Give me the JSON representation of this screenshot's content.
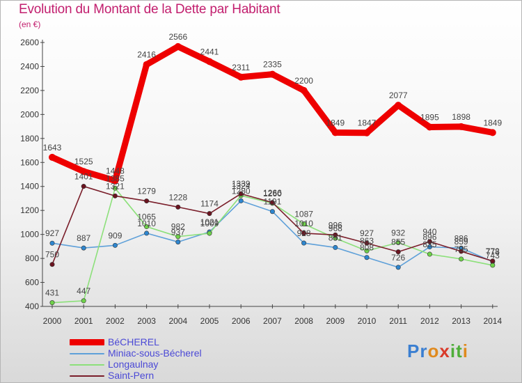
{
  "header": {
    "title": "Evolution du Montant de la Dette par Habitant",
    "subtitle": "(en €)"
  },
  "logo": {
    "letters": [
      "P",
      "r",
      "o",
      "x",
      "i",
      "t",
      "i"
    ],
    "colors": [
      "#3b7fd1",
      "#3b7fd1",
      "#e08a1e",
      "#d93a2a",
      "#4fae3a",
      "#4fae3a",
      "#e08a1e"
    ]
  },
  "chart_data": {
    "type": "line",
    "title": "Evolution du Montant de la Dette par Habitant",
    "subtitle": "(en €)",
    "xlabel": "",
    "ylabel": "",
    "categories": [
      "2000",
      "2001",
      "2002",
      "2003",
      "2004",
      "2005",
      "2006",
      "2007",
      "2008",
      "2009",
      "2010",
      "2011",
      "2012",
      "2013",
      "2014"
    ],
    "ylim": [
      400,
      2600
    ],
    "yticks": [
      400,
      600,
      800,
      1000,
      1200,
      1400,
      1600,
      1800,
      2000,
      2200,
      2400,
      2600
    ],
    "grid": false,
    "legend_position": "bottom-left",
    "series": [
      {
        "name": "BéCHEREL",
        "color": "#ee0000",
        "marker_color": "#ee0000",
        "width": "thick",
        "values": [
          1643,
          1525,
          1448,
          2416,
          2566,
          2441,
          2311,
          2335,
          2200,
          1849,
          1847,
          2077,
          1895,
          1898,
          1849
        ],
        "labels": [
          "1643",
          "1525",
          "1448",
          "2416",
          "2566",
          "2441",
          "2311",
          "2335",
          "2200",
          "1849",
          "1847",
          "2077",
          "1895",
          "1898",
          "1849"
        ]
      },
      {
        "name": "Miniac-sous-Bécherel",
        "color": "#5ea0d9",
        "marker_color": "#2e86cf",
        "width": "thin",
        "values": [
          927,
          887,
          909,
          1010,
          937,
          1021,
          1280,
          1191,
          928,
          891,
          808,
          726,
          896,
          886,
          773
        ],
        "labels": [
          "927",
          "887",
          "909",
          "1010",
          "937",
          "1021",
          "1280",
          "1191",
          "928",
          "891",
          "808",
          "726",
          "896",
          "886",
          "773"
        ]
      },
      {
        "name": "Longaulnay",
        "color": "#8ce07a",
        "marker_color": "#6fd24a",
        "width": "thin",
        "values": [
          431,
          447,
          1385,
          1065,
          982,
          1009,
          1324,
          1260,
          1087,
          968,
          863,
          932,
          835,
          795,
          743
        ],
        "labels": [
          "431",
          "447",
          "1385",
          "1065",
          "982",
          "1009",
          "1324",
          "1260",
          "1087",
          "968",
          "863",
          "932",
          "835",
          "795",
          "743"
        ]
      },
      {
        "name": "Saint-Pern",
        "color": "#7a1e2a",
        "marker_color": "#6b1420",
        "width": "thin",
        "values": [
          750,
          1401,
          1321,
          1279,
          1228,
          1174,
          1339,
          1266,
          1010,
          996,
          927,
          855,
          940,
          859,
          778
        ],
        "labels": [
          "750",
          "1401",
          "1321",
          "1279",
          "1228",
          "1174",
          "1339",
          "1266",
          "1010",
          "996",
          "927",
          "855",
          "940",
          "859",
          "778"
        ]
      }
    ]
  }
}
